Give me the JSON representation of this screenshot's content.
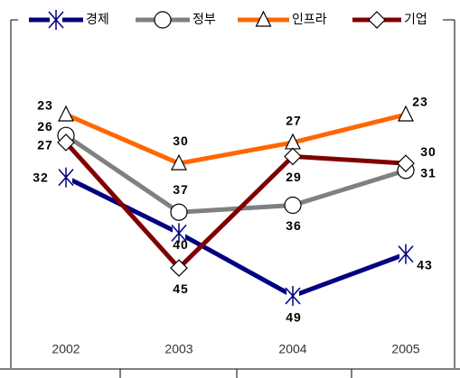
{
  "chart_data": {
    "type": "line",
    "categories": [
      "2002",
      "2003",
      "2004",
      "2005"
    ],
    "y_reversed": true,
    "series": [
      {
        "name": "경제",
        "color": "#000080",
        "marker": "asterisk",
        "values": [
          32,
          40,
          49,
          43
        ]
      },
      {
        "name": "정부",
        "color": "#808080",
        "marker": "circle",
        "values": [
          26,
          37,
          36,
          31
        ]
      },
      {
        "name": "인프라",
        "color": "#ff6600",
        "marker": "triangle",
        "values": [
          23,
          30,
          27,
          23
        ]
      },
      {
        "name": "기업",
        "color": "#800000",
        "marker": "diamond",
        "values": [
          27,
          45,
          29,
          30
        ]
      }
    ]
  }
}
